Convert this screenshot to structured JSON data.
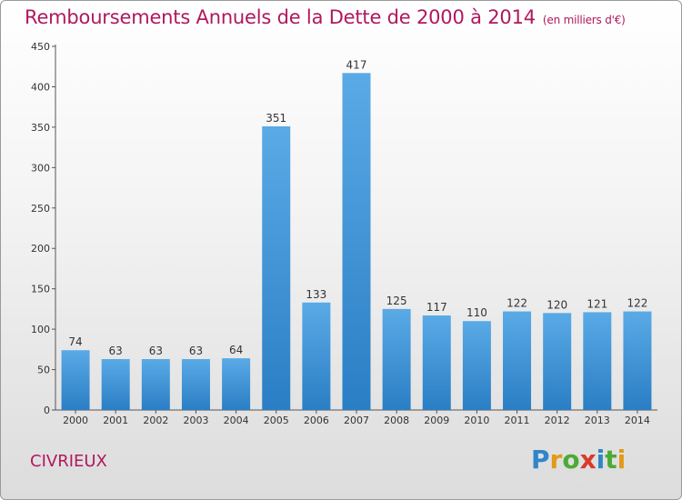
{
  "header": {
    "title": "Remboursements Annuels de la Dette de 2000 à 2014",
    "unit": "(en milliers d'€)"
  },
  "footer": {
    "town": "CIVRIEUX",
    "logo_letters": [
      {
        "ch": "P",
        "color": "#2f86c8"
      },
      {
        "ch": "r",
        "color": "#e39a18"
      },
      {
        "ch": "o",
        "color": "#4caa35"
      },
      {
        "ch": "x",
        "color": "#d93b2b"
      },
      {
        "ch": "i",
        "color": "#2f86c8"
      },
      {
        "ch": "t",
        "color": "#4caa35"
      },
      {
        "ch": "i",
        "color": "#e39a18"
      }
    ]
  },
  "colors": {
    "bar_top": "#5aaae6",
    "bar_bottom": "#2a7ec4",
    "axis": "#555555",
    "title": "#b0185e"
  },
  "chart_data": {
    "type": "bar",
    "categories": [
      "2000",
      "2001",
      "2002",
      "2003",
      "2004",
      "2005",
      "2006",
      "2007",
      "2008",
      "2009",
      "2010",
      "2011",
      "2012",
      "2013",
      "2014"
    ],
    "values": [
      74,
      63,
      63,
      63,
      64,
      351,
      133,
      417,
      125,
      117,
      110,
      122,
      120,
      121,
      122
    ],
    "yticks": [
      0,
      50,
      100,
      150,
      200,
      250,
      300,
      350,
      400,
      450
    ],
    "ylim": [
      0,
      450
    ],
    "grid": false,
    "legend": "none"
  }
}
